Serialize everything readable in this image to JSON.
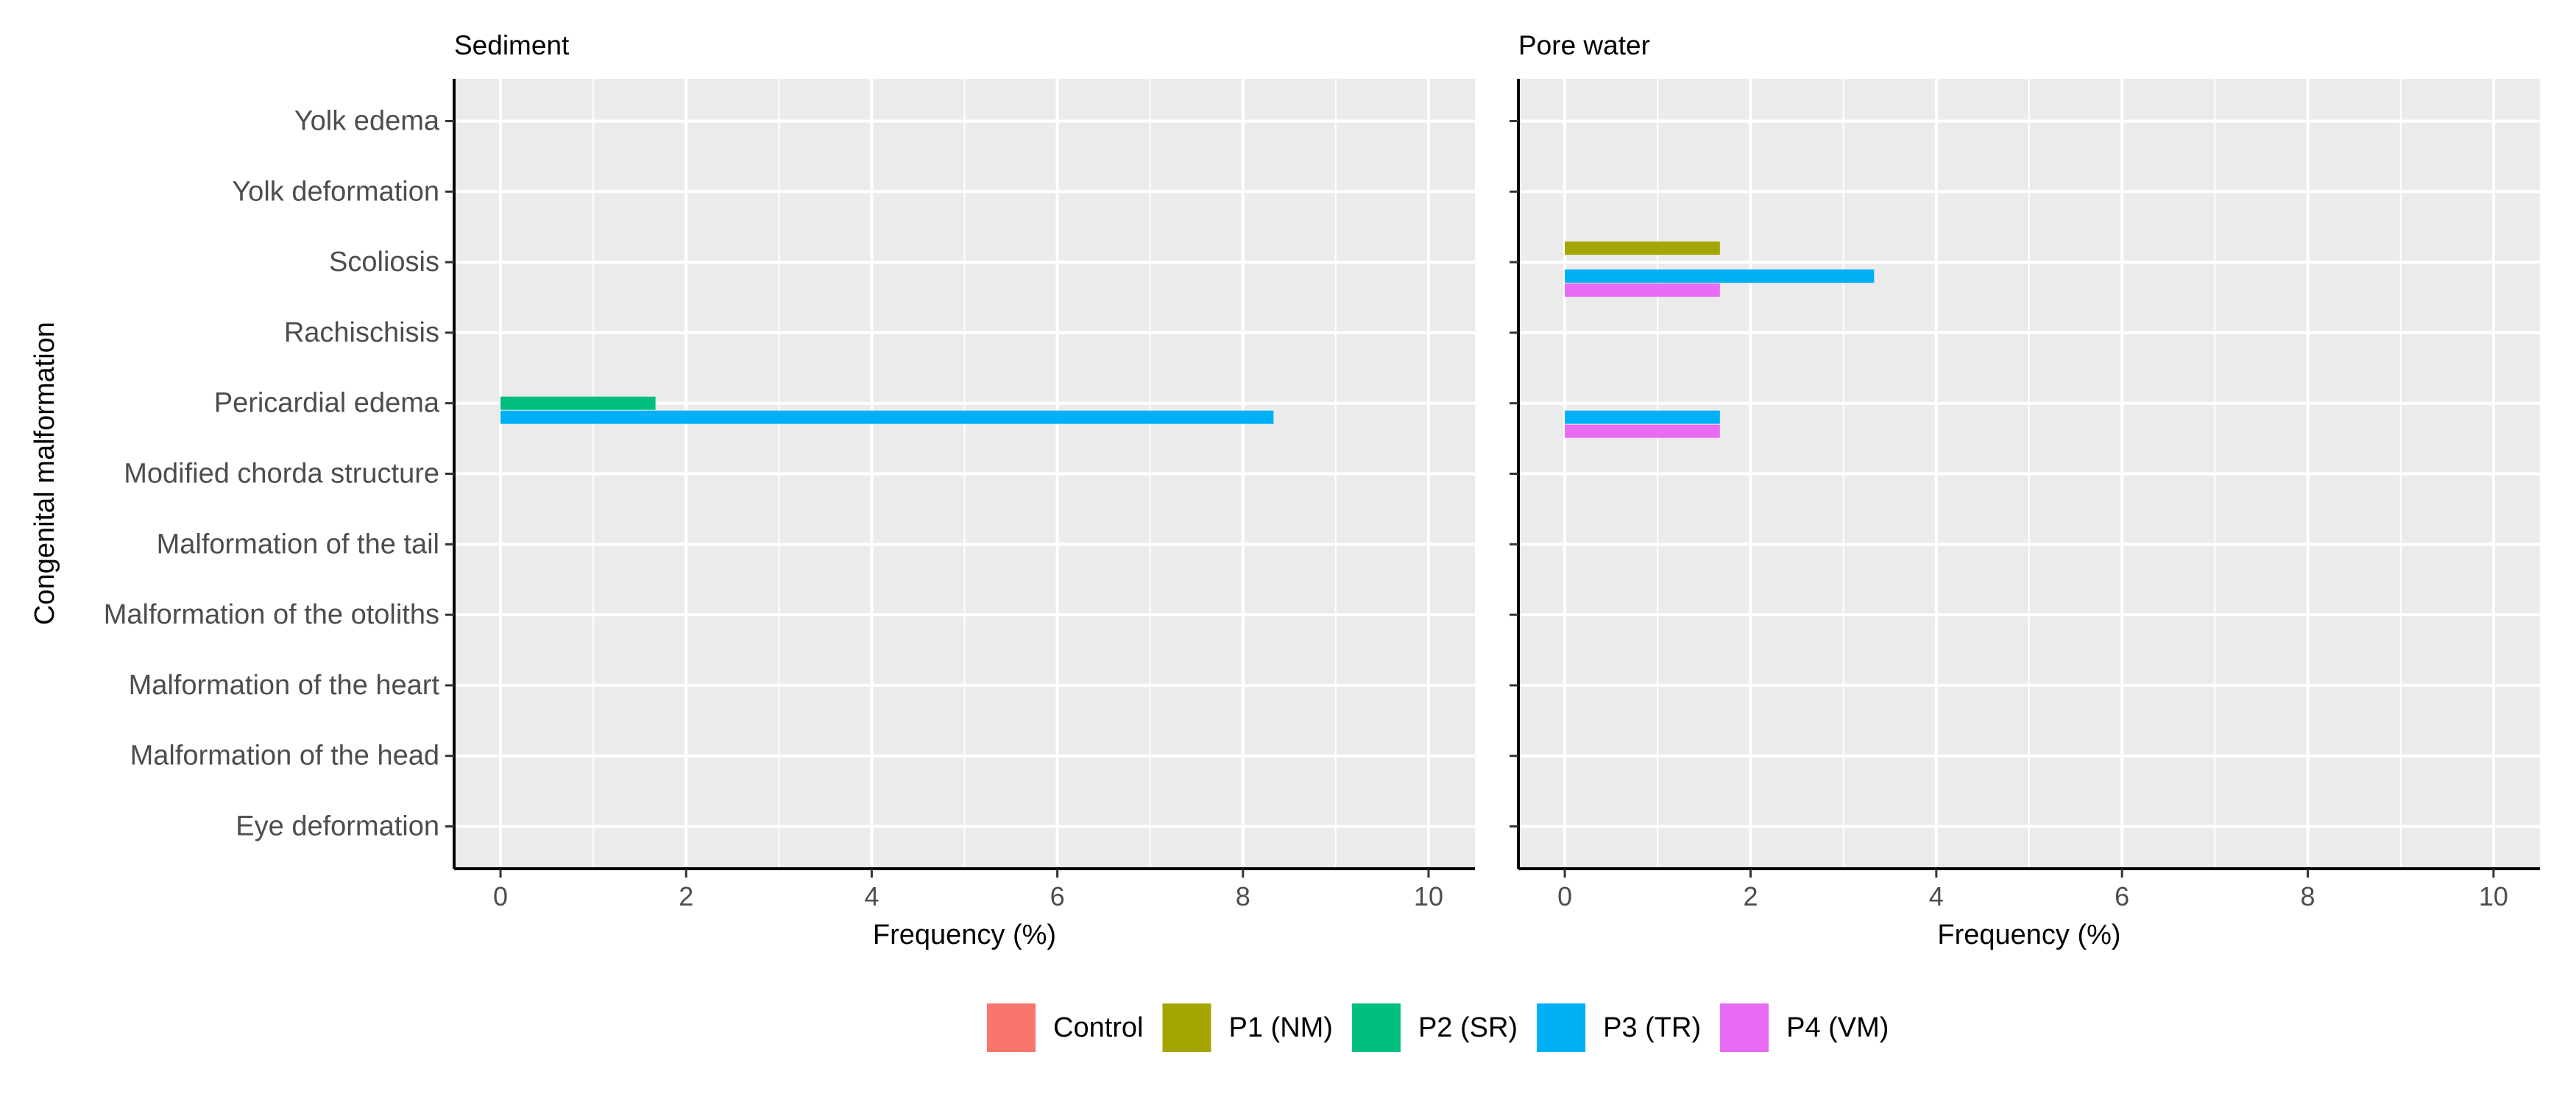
{
  "chart_data": {
    "type": "bar",
    "orientation": "horizontal",
    "facets": [
      "Sediment",
      "Pore water"
    ],
    "categories": [
      "Eye deformation",
      "Malformation of the head",
      "Malformation of the heart",
      "Malformation of the otoliths",
      "Malformation of the tail",
      "Modified chorda structure",
      "Pericardial edema",
      "Rachischisis",
      "Scoliosis",
      "Yolk deformation",
      "Yolk edema"
    ],
    "xlabel": "Frequency (%)",
    "ylabel": "Congenital malformation",
    "xlim": [
      0,
      10
    ],
    "xticks": [
      "0",
      "2",
      "4",
      "6",
      "8",
      "10"
    ],
    "grid": true,
    "legend_position": "bottom",
    "series": [
      {
        "name": "Control",
        "color": "#F8766D",
        "values": {
          "Sediment": [
            0,
            0,
            0,
            0,
            0,
            0,
            0,
            0,
            0,
            0,
            0
          ],
          "Pore water": [
            0,
            0,
            0,
            0,
            0,
            0,
            0,
            0,
            0,
            0,
            0
          ]
        }
      },
      {
        "name": "P1 (NM)",
        "color": "#A3A500",
        "values": {
          "Sediment": [
            0,
            0,
            0,
            0,
            0,
            0,
            0,
            0,
            0,
            0,
            0
          ],
          "Pore water": [
            0,
            0,
            0,
            0,
            0,
            0,
            0,
            0,
            1.67,
            0,
            0
          ]
        }
      },
      {
        "name": "P2 (SR)",
        "color": "#00BF7D",
        "values": {
          "Sediment": [
            0,
            0,
            0,
            0,
            0,
            0,
            1.67,
            0,
            0,
            0,
            0
          ],
          "Pore water": [
            0,
            0,
            0,
            0,
            0,
            0,
            0,
            0,
            0,
            0,
            0
          ]
        }
      },
      {
        "name": "P3 (TR)",
        "color": "#00B0F6",
        "values": {
          "Sediment": [
            0,
            0,
            0,
            0,
            0,
            0,
            8.33,
            0,
            0,
            0,
            0
          ],
          "Pore water": [
            0,
            0,
            0,
            0,
            0,
            0,
            1.67,
            0,
            3.33,
            0,
            0
          ]
        }
      },
      {
        "name": "P4 (VM)",
        "color": "#E76BF3",
        "values": {
          "Sediment": [
            0,
            0,
            0,
            0,
            0,
            0,
            0,
            0,
            0,
            0,
            0
          ],
          "Pore water": [
            0,
            0,
            0,
            0,
            0,
            0,
            1.67,
            0,
            1.67,
            0,
            0
          ]
        }
      }
    ]
  }
}
